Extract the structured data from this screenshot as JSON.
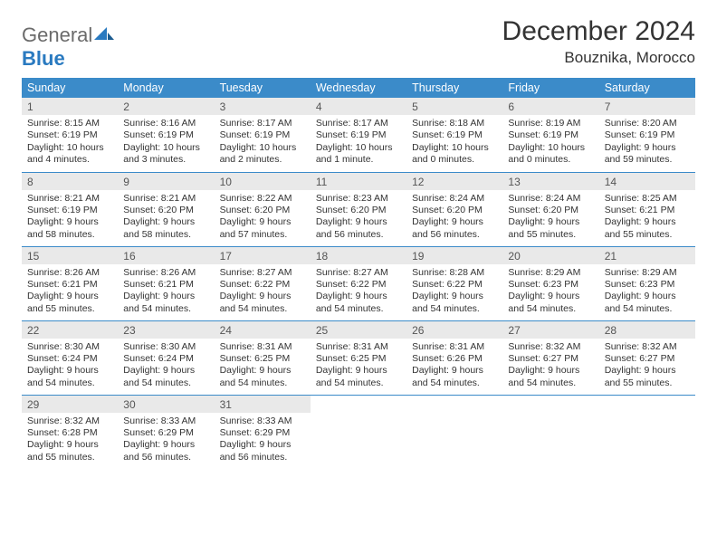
{
  "logo": {
    "text1": "General",
    "text2": "Blue"
  },
  "title": "December 2024",
  "location": "Bouznika, Morocco",
  "colors": {
    "header_bg": "#3b8bc9",
    "header_text": "#ffffff",
    "daynum_bg": "#e9e9e9",
    "rule": "#3b8bc9",
    "logo_gray": "#6b6b6b",
    "logo_blue": "#2a7ac0"
  },
  "weekdays": [
    "Sunday",
    "Monday",
    "Tuesday",
    "Wednesday",
    "Thursday",
    "Friday",
    "Saturday"
  ],
  "weeks": [
    [
      {
        "n": "1",
        "sr": "Sunrise: 8:15 AM",
        "ss": "Sunset: 6:19 PM",
        "dl": "Daylight: 10 hours and 4 minutes."
      },
      {
        "n": "2",
        "sr": "Sunrise: 8:16 AM",
        "ss": "Sunset: 6:19 PM",
        "dl": "Daylight: 10 hours and 3 minutes."
      },
      {
        "n": "3",
        "sr": "Sunrise: 8:17 AM",
        "ss": "Sunset: 6:19 PM",
        "dl": "Daylight: 10 hours and 2 minutes."
      },
      {
        "n": "4",
        "sr": "Sunrise: 8:17 AM",
        "ss": "Sunset: 6:19 PM",
        "dl": "Daylight: 10 hours and 1 minute."
      },
      {
        "n": "5",
        "sr": "Sunrise: 8:18 AM",
        "ss": "Sunset: 6:19 PM",
        "dl": "Daylight: 10 hours and 0 minutes."
      },
      {
        "n": "6",
        "sr": "Sunrise: 8:19 AM",
        "ss": "Sunset: 6:19 PM",
        "dl": "Daylight: 10 hours and 0 minutes."
      },
      {
        "n": "7",
        "sr": "Sunrise: 8:20 AM",
        "ss": "Sunset: 6:19 PM",
        "dl": "Daylight: 9 hours and 59 minutes."
      }
    ],
    [
      {
        "n": "8",
        "sr": "Sunrise: 8:21 AM",
        "ss": "Sunset: 6:19 PM",
        "dl": "Daylight: 9 hours and 58 minutes."
      },
      {
        "n": "9",
        "sr": "Sunrise: 8:21 AM",
        "ss": "Sunset: 6:20 PM",
        "dl": "Daylight: 9 hours and 58 minutes."
      },
      {
        "n": "10",
        "sr": "Sunrise: 8:22 AM",
        "ss": "Sunset: 6:20 PM",
        "dl": "Daylight: 9 hours and 57 minutes."
      },
      {
        "n": "11",
        "sr": "Sunrise: 8:23 AM",
        "ss": "Sunset: 6:20 PM",
        "dl": "Daylight: 9 hours and 56 minutes."
      },
      {
        "n": "12",
        "sr": "Sunrise: 8:24 AM",
        "ss": "Sunset: 6:20 PM",
        "dl": "Daylight: 9 hours and 56 minutes."
      },
      {
        "n": "13",
        "sr": "Sunrise: 8:24 AM",
        "ss": "Sunset: 6:20 PM",
        "dl": "Daylight: 9 hours and 55 minutes."
      },
      {
        "n": "14",
        "sr": "Sunrise: 8:25 AM",
        "ss": "Sunset: 6:21 PM",
        "dl": "Daylight: 9 hours and 55 minutes."
      }
    ],
    [
      {
        "n": "15",
        "sr": "Sunrise: 8:26 AM",
        "ss": "Sunset: 6:21 PM",
        "dl": "Daylight: 9 hours and 55 minutes."
      },
      {
        "n": "16",
        "sr": "Sunrise: 8:26 AM",
        "ss": "Sunset: 6:21 PM",
        "dl": "Daylight: 9 hours and 54 minutes."
      },
      {
        "n": "17",
        "sr": "Sunrise: 8:27 AM",
        "ss": "Sunset: 6:22 PM",
        "dl": "Daylight: 9 hours and 54 minutes."
      },
      {
        "n": "18",
        "sr": "Sunrise: 8:27 AM",
        "ss": "Sunset: 6:22 PM",
        "dl": "Daylight: 9 hours and 54 minutes."
      },
      {
        "n": "19",
        "sr": "Sunrise: 8:28 AM",
        "ss": "Sunset: 6:22 PM",
        "dl": "Daylight: 9 hours and 54 minutes."
      },
      {
        "n": "20",
        "sr": "Sunrise: 8:29 AM",
        "ss": "Sunset: 6:23 PM",
        "dl": "Daylight: 9 hours and 54 minutes."
      },
      {
        "n": "21",
        "sr": "Sunrise: 8:29 AM",
        "ss": "Sunset: 6:23 PM",
        "dl": "Daylight: 9 hours and 54 minutes."
      }
    ],
    [
      {
        "n": "22",
        "sr": "Sunrise: 8:30 AM",
        "ss": "Sunset: 6:24 PM",
        "dl": "Daylight: 9 hours and 54 minutes."
      },
      {
        "n": "23",
        "sr": "Sunrise: 8:30 AM",
        "ss": "Sunset: 6:24 PM",
        "dl": "Daylight: 9 hours and 54 minutes."
      },
      {
        "n": "24",
        "sr": "Sunrise: 8:31 AM",
        "ss": "Sunset: 6:25 PM",
        "dl": "Daylight: 9 hours and 54 minutes."
      },
      {
        "n": "25",
        "sr": "Sunrise: 8:31 AM",
        "ss": "Sunset: 6:25 PM",
        "dl": "Daylight: 9 hours and 54 minutes."
      },
      {
        "n": "26",
        "sr": "Sunrise: 8:31 AM",
        "ss": "Sunset: 6:26 PM",
        "dl": "Daylight: 9 hours and 54 minutes."
      },
      {
        "n": "27",
        "sr": "Sunrise: 8:32 AM",
        "ss": "Sunset: 6:27 PM",
        "dl": "Daylight: 9 hours and 54 minutes."
      },
      {
        "n": "28",
        "sr": "Sunrise: 8:32 AM",
        "ss": "Sunset: 6:27 PM",
        "dl": "Daylight: 9 hours and 55 minutes."
      }
    ],
    [
      {
        "n": "29",
        "sr": "Sunrise: 8:32 AM",
        "ss": "Sunset: 6:28 PM",
        "dl": "Daylight: 9 hours and 55 minutes."
      },
      {
        "n": "30",
        "sr": "Sunrise: 8:33 AM",
        "ss": "Sunset: 6:29 PM",
        "dl": "Daylight: 9 hours and 56 minutes."
      },
      {
        "n": "31",
        "sr": "Sunrise: 8:33 AM",
        "ss": "Sunset: 6:29 PM",
        "dl": "Daylight: 9 hours and 56 minutes."
      },
      null,
      null,
      null,
      null
    ]
  ]
}
